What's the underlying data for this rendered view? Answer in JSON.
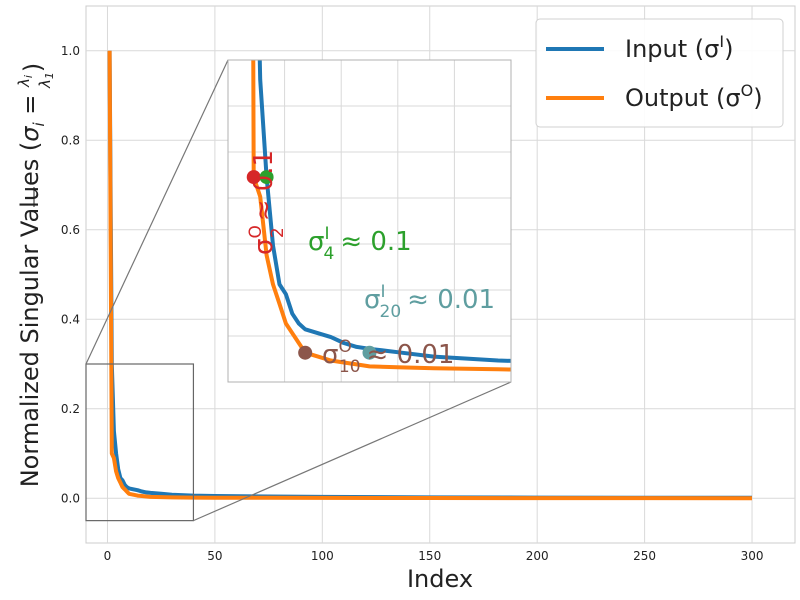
{
  "chart_data": {
    "type": "line",
    "xlabel": "Index",
    "ylabel_main": "Normalized Singular Values (",
    "ylabel_sigma": "σ",
    "ylabel_sub": "i",
    "ylabel_eq": " = ",
    "ylabel_num": "λ",
    "ylabel_num_sub": "i",
    "ylabel_den": "λ",
    "ylabel_den_sub": "1",
    "ylabel_close": ")",
    "xlim": [
      -10,
      320
    ],
    "ylim": [
      -0.1,
      1.1
    ],
    "xticks": [
      0,
      50,
      100,
      150,
      200,
      250,
      300
    ],
    "yticks": [
      0.0,
      0.2,
      0.4,
      0.6,
      0.8,
      1.0
    ],
    "xtick_labels": [
      "0",
      "50",
      "100",
      "150",
      "200",
      "250",
      "300"
    ],
    "ytick_labels": [
      "0.0",
      "0.2",
      "0.4",
      "0.6",
      "0.8",
      "1.0"
    ],
    "grid": true,
    "legend_placement": "top-right",
    "series": [
      {
        "name": "Input",
        "name_symbol": "σ",
        "name_sup": "I",
        "color": "#1f77b4",
        "x": [
          1,
          2,
          3,
          4,
          5,
          6,
          7,
          8,
          9,
          10,
          12,
          14,
          16,
          18,
          20,
          25,
          30,
          40,
          50,
          75,
          100,
          150,
          200,
          250,
          300
        ],
        "y": [
          1.0,
          0.3,
          0.15,
          0.1,
          0.065,
          0.045,
          0.04,
          0.03,
          0.025,
          0.022,
          0.02,
          0.018,
          0.015,
          0.013,
          0.012,
          0.01,
          0.008,
          0.006,
          0.005,
          0.004,
          0.003,
          0.002,
          0.0015,
          0.001,
          0.001
        ]
      },
      {
        "name": "Output",
        "name_symbol": "σ",
        "name_sup": "O",
        "color": "#ff7f0e",
        "x": [
          1,
          2,
          3,
          4,
          5,
          6,
          7,
          8,
          9,
          10,
          12,
          14,
          16,
          18,
          20,
          25,
          30,
          40,
          50,
          75,
          100,
          150,
          200,
          250,
          300
        ],
        "y": [
          1.0,
          0.1,
          0.09,
          0.06,
          0.045,
          0.035,
          0.025,
          0.02,
          0.015,
          0.01,
          0.008,
          0.006,
          0.005,
          0.004,
          0.003,
          0.0025,
          0.002,
          0.0015,
          0.001,
          0.001,
          0.0008,
          0.0005,
          0.0004,
          0.0003,
          0.0002
        ]
      }
    ],
    "inset": {
      "source_box_x": [
        -10,
        40
      ],
      "source_box_y": [
        -0.05,
        0.3
      ],
      "xlim": [
        -2,
        42
      ],
      "ylim": [
        -0.005,
        0.16
      ]
    },
    "annotations": [
      {
        "symbol": "σ",
        "sup": "O",
        "sub": "2",
        "text": "≈ 0.1",
        "x": 2,
        "y": 0.1,
        "color": "#d62728"
      },
      {
        "symbol": "σ",
        "sup": "I",
        "sub": "4",
        "text": "≈ 0.1",
        "x": 4,
        "y": 0.1,
        "color": "#2ca02c"
      },
      {
        "symbol": "σ",
        "sup": "I",
        "sub": "20",
        "text": "≈ 0.01",
        "x": 20,
        "y": 0.01,
        "color": "#5f9ea0"
      },
      {
        "symbol": "σ",
        "sup": "O",
        "sub": "10",
        "text": "≈ 0.01",
        "x": 10,
        "y": 0.01,
        "color": "#8c564b"
      }
    ]
  }
}
